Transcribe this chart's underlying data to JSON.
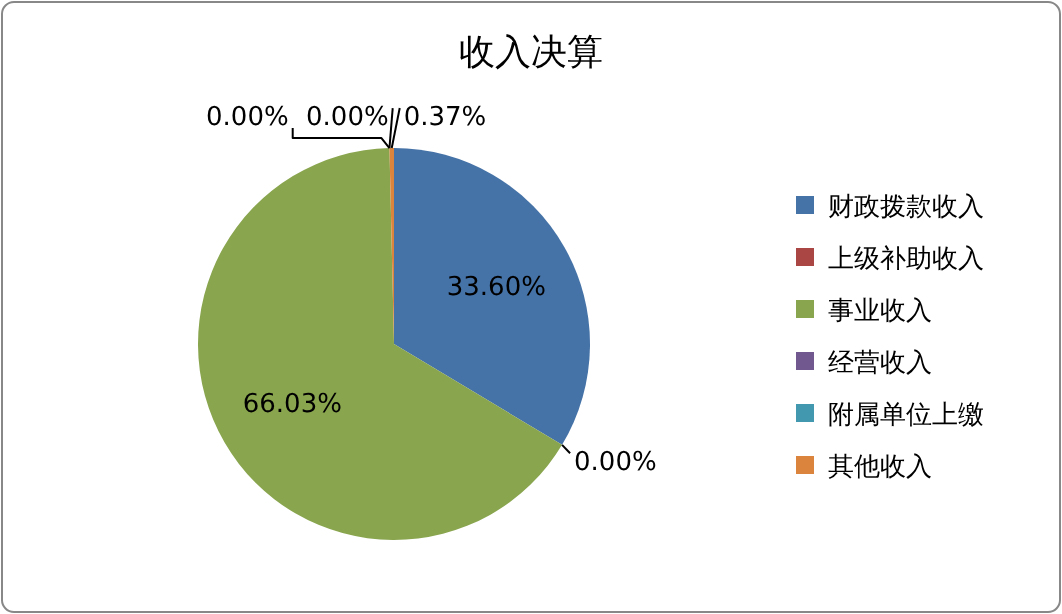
{
  "chart_data": {
    "type": "pie",
    "title": "收入决算",
    "categories": [
      "财政拨款收入",
      "上级补助收入",
      "事业收入",
      "经营收入",
      "附属单位上缴",
      "其他收入"
    ],
    "values": [
      33.6,
      0.0,
      66.03,
      0.0,
      0.0,
      0.37
    ],
    "colors": [
      "#4572a7",
      "#aa4643",
      "#89a54e",
      "#71588f",
      "#4198af",
      "#db843d"
    ],
    "value_labels": [
      "33.60%",
      "0.00%",
      "66.03%",
      "0.00%",
      "0.00%",
      "0.37%"
    ],
    "legend": "right"
  }
}
